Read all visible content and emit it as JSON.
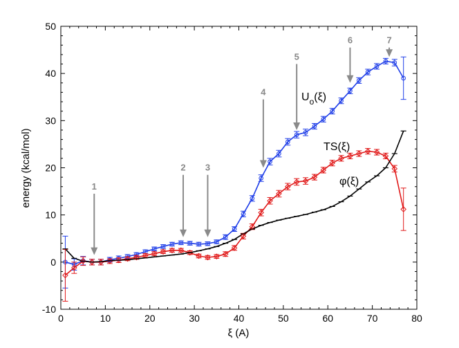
{
  "chart_data": {
    "type": "line",
    "title": "",
    "xlabel": "ξ (A)",
    "ylabel": "energy (kcal/mol)",
    "xlim": [
      0,
      80
    ],
    "ylim": [
      -10,
      50
    ],
    "xticks": [
      0,
      10,
      20,
      30,
      40,
      50,
      60,
      70,
      80
    ],
    "yticks": [
      -10,
      0,
      10,
      20,
      30,
      40,
      50
    ],
    "grid": false,
    "series": [
      {
        "name": "U_o(ξ)",
        "label_main": "U",
        "label_sub": "o",
        "label_rest": "(ξ)",
        "color": "#1f3ee8",
        "marker": "circle",
        "x": [
          1,
          3,
          5,
          7,
          9,
          11,
          13,
          15,
          17,
          19,
          21,
          23,
          25,
          27,
          29,
          31,
          33,
          35,
          37,
          39,
          41,
          43,
          45,
          47,
          49,
          51,
          53,
          55,
          57,
          59,
          61,
          63,
          65,
          67,
          69,
          71,
          73,
          75,
          77
        ],
        "y": [
          0.0,
          -0.5,
          0.3,
          0.0,
          0.0,
          0.5,
          0.8,
          1.2,
          1.6,
          2.2,
          2.8,
          3.3,
          3.8,
          4.1,
          4.0,
          3.8,
          3.9,
          4.3,
          5.3,
          7.0,
          10.2,
          13.5,
          17.8,
          21.3,
          23.0,
          25.5,
          27.0,
          27.5,
          28.8,
          30.3,
          32.0,
          34.2,
          36.3,
          38.5,
          40.3,
          41.5,
          42.6,
          42.3,
          39.0
        ],
        "err": [
          5.5,
          1.2,
          0.9,
          0.6,
          0.6,
          0.5,
          0.5,
          0.4,
          0.4,
          0.4,
          0.4,
          0.4,
          0.4,
          0.4,
          0.4,
          0.4,
          0.4,
          0.4,
          0.5,
          0.5,
          0.6,
          0.6,
          0.7,
          0.7,
          0.7,
          0.7,
          0.7,
          0.7,
          0.6,
          0.6,
          0.6,
          0.6,
          0.6,
          0.6,
          0.6,
          0.6,
          0.6,
          0.7,
          4.5
        ]
      },
      {
        "name": "TS(ξ)",
        "label_main": "TS(ξ)",
        "color": "#e01818",
        "marker": "diamond",
        "x": [
          1,
          3,
          5,
          7,
          9,
          11,
          13,
          15,
          17,
          19,
          21,
          23,
          25,
          27,
          29,
          31,
          33,
          35,
          37,
          39,
          41,
          43,
          45,
          47,
          49,
          51,
          53,
          55,
          57,
          59,
          61,
          63,
          65,
          67,
          69,
          71,
          73,
          75,
          77
        ],
        "y": [
          -2.8,
          -1.2,
          0.2,
          0.0,
          0.0,
          0.2,
          0.4,
          0.7,
          1.0,
          1.4,
          1.8,
          2.2,
          2.5,
          2.5,
          2.0,
          1.3,
          1.0,
          1.2,
          1.7,
          3.0,
          5.5,
          7.5,
          10.5,
          13.0,
          14.5,
          16.0,
          17.0,
          17.2,
          18.0,
          19.5,
          21.0,
          22.0,
          22.5,
          23.0,
          23.5,
          23.3,
          22.5,
          19.8,
          11.2
        ],
        "err": [
          5.5,
          1.2,
          0.9,
          0.6,
          0.6,
          0.5,
          0.5,
          0.4,
          0.4,
          0.4,
          0.4,
          0.4,
          0.4,
          0.4,
          0.4,
          0.4,
          0.4,
          0.4,
          0.5,
          0.5,
          0.6,
          0.6,
          0.7,
          0.7,
          0.7,
          0.7,
          0.7,
          0.7,
          0.6,
          0.6,
          0.6,
          0.6,
          0.6,
          0.6,
          0.6,
          0.6,
          0.6,
          0.7,
          4.5
        ]
      },
      {
        "name": "φ(ξ)",
        "label_main": "φ(ξ)",
        "color": "#000000",
        "marker": "tick",
        "x": [
          1,
          3,
          5,
          7,
          9,
          11,
          13,
          15,
          17,
          19,
          21,
          23,
          25,
          27,
          29,
          31,
          33,
          35,
          37,
          39,
          41,
          43,
          45,
          47,
          49,
          51,
          53,
          55,
          57,
          59,
          61,
          63,
          65,
          67,
          69,
          71,
          73,
          75,
          77
        ],
        "y": [
          2.8,
          0.8,
          0.2,
          0.0,
          0.1,
          0.3,
          0.4,
          0.5,
          0.7,
          0.9,
          1.1,
          1.3,
          1.5,
          1.7,
          2.0,
          2.4,
          2.8,
          3.3,
          4.0,
          4.8,
          6.0,
          7.0,
          7.8,
          8.4,
          8.9,
          9.3,
          9.7,
          10.1,
          10.6,
          11.1,
          11.8,
          12.8,
          14.0,
          15.5,
          17.0,
          18.3,
          20.0,
          23.0,
          27.8
        ]
      }
    ],
    "annotations": [
      {
        "label": "1",
        "x": 7.5,
        "y_top": 14.5,
        "y_tip": 1.5
      },
      {
        "label": "2",
        "x": 27.5,
        "y_top": 18.5,
        "y_tip": 5.3
      },
      {
        "label": "3",
        "x": 33.0,
        "y_top": 18.5,
        "y_tip": 5.3
      },
      {
        "label": "4",
        "x": 45.5,
        "y_top": 34.5,
        "y_tip": 20.0
      },
      {
        "label": "5",
        "x": 53.0,
        "y_top": 42.0,
        "y_tip": 28.0
      },
      {
        "label": "6",
        "x": 65.0,
        "y_top": 45.5,
        "y_tip": 38.0
      },
      {
        "label": "7",
        "x": 73.8,
        "y_top": 45.5,
        "y_tip": 43.5
      }
    ]
  }
}
